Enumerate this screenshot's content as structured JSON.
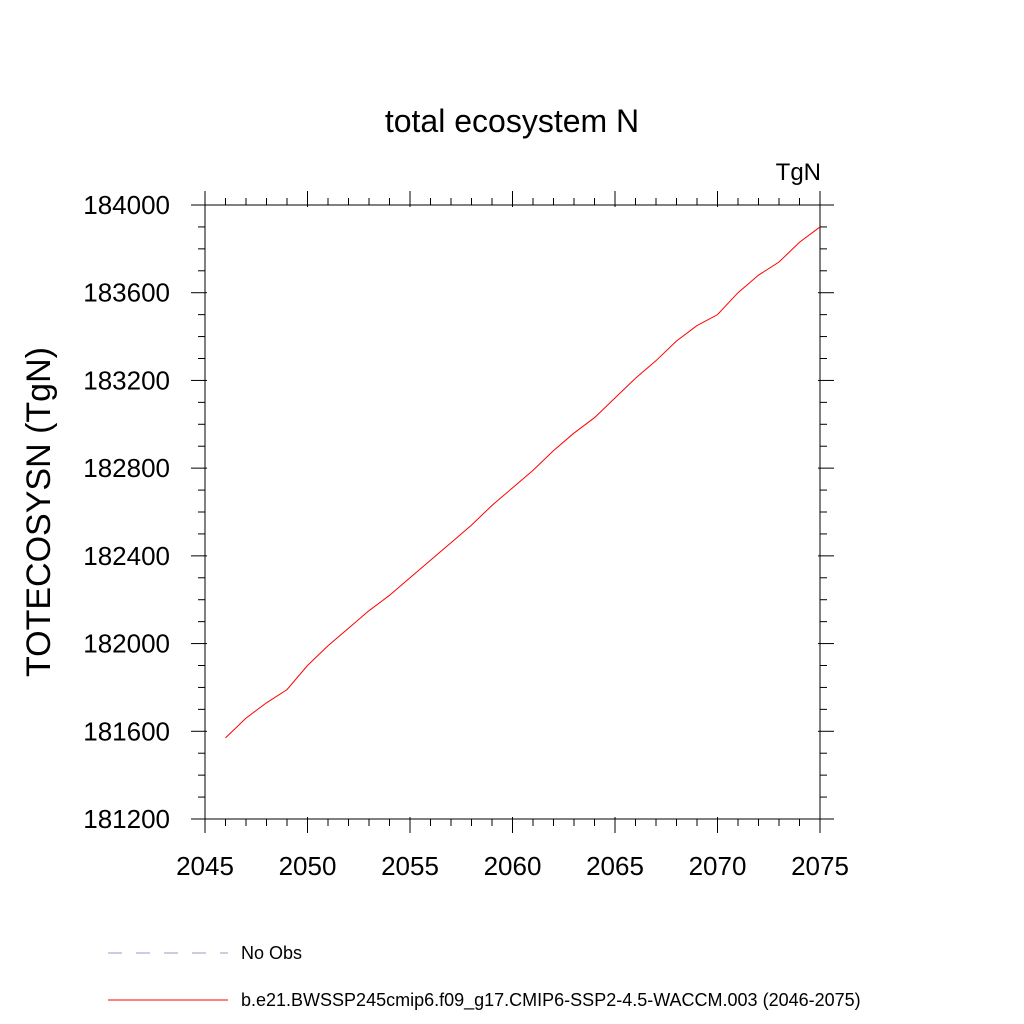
{
  "chart_data": {
    "type": "line",
    "title": "total ecosystem N",
    "units_label": "TgN",
    "ylabel": "TOTECOSYSN  (TgN)",
    "xlabel": "",
    "xlim": [
      2045,
      2075
    ],
    "ylim": [
      181200,
      184000
    ],
    "xticks": [
      2045,
      2050,
      2055,
      2060,
      2065,
      2070,
      2075
    ],
    "yticks": [
      181200,
      181600,
      182000,
      182400,
      182800,
      183200,
      183600,
      184000
    ],
    "x_minor_step": 1,
    "y_minor_step": 100,
    "grid": false,
    "legend_placement": "bottom",
    "series": [
      {
        "name": "b.e21.BWSSP245cmip6.f09_g17.CMIP6-SSP2-4.5-WACCM.003 (2046-2075)",
        "color": "#ff0000",
        "line_style": "solid",
        "x": [
          2046,
          2047,
          2048,
          2049,
          2050,
          2051,
          2052,
          2053,
          2054,
          2055,
          2056,
          2057,
          2058,
          2059,
          2060,
          2061,
          2062,
          2063,
          2064,
          2065,
          2066,
          2067,
          2068,
          2069,
          2070,
          2071,
          2072,
          2073,
          2074,
          2075
        ],
        "y": [
          181570,
          181660,
          181730,
          181790,
          181900,
          181990,
          182070,
          182150,
          182220,
          182300,
          182380,
          182460,
          182540,
          182630,
          182710,
          182790,
          182880,
          182960,
          183030,
          183120,
          183210,
          183290,
          183380,
          183450,
          183500,
          183600,
          183680,
          183740,
          183830,
          183900
        ]
      }
    ],
    "legend": [
      {
        "label": "No Obs",
        "color": "#9999cc",
        "line_style": "dashed"
      },
      {
        "label": "b.e21.BWSSP245cmip6.f09_g17.CMIP6-SSP2-4.5-WACCM.003 (2046-2075)",
        "color": "#ff0000",
        "line_style": "solid"
      }
    ]
  }
}
